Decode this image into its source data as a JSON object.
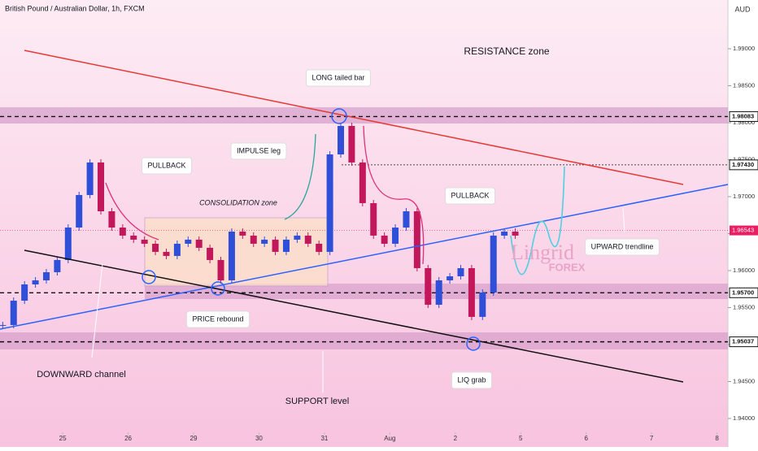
{
  "chart_data": {
    "type": "candlestick",
    "title": "British Pound / Australian Dollar, 1h, FXCM",
    "currency": "AUD",
    "up_color": "#2f4fd8",
    "down_color": "#c2185b",
    "x": [
      -22,
      -18,
      -14,
      -10,
      -6,
      -2,
      2,
      6,
      10,
      14,
      18,
      22,
      26,
      30,
      34,
      38,
      42,
      46,
      50,
      54,
      58,
      62,
      66,
      70,
      74,
      78,
      82,
      86,
      90,
      94,
      98,
      102,
      106,
      110,
      114,
      118,
      122,
      126,
      130,
      134,
      138,
      142,
      146,
      150,
      154,
      158,
      162,
      166
    ],
    "close": [
      1.95264,
      1.95593,
      1.95813,
      1.95868,
      1.95978,
      1.96143,
      1.96582,
      1.97022,
      1.97462,
      1.96802,
      1.96582,
      1.96473,
      1.96418,
      1.96363,
      1.96253,
      1.96198,
      1.96363,
      1.96418,
      1.96308,
      1.96143,
      1.95868,
      1.96527,
      1.96473,
      1.96363,
      1.96418,
      1.96253,
      1.96418,
      1.96473,
      1.96363,
      1.96253,
      1.97571,
      1.97956,
      1.97462,
      1.96912,
      1.96473,
      1.96363,
      1.96582,
      1.96802,
      1.96033,
      1.95538,
      1.95868,
      1.95923,
      1.96033,
      1.95374,
      1.95703,
      1.96473,
      1.96527,
      1.96473
    ],
    "xlim": [
      -23,
      244
    ],
    "xticks": [
      {
        "value": 0,
        "label": "25"
      },
      {
        "value": 24,
        "label": "26"
      },
      {
        "value": 48,
        "label": "29"
      },
      {
        "value": 72,
        "label": "30"
      },
      {
        "value": 96,
        "label": "31"
      },
      {
        "value": 120,
        "label": "Aug"
      },
      {
        "value": 144,
        "label": "2"
      },
      {
        "value": 168,
        "label": "5"
      },
      {
        "value": 192,
        "label": "6"
      },
      {
        "value": 216,
        "label": "7"
      },
      {
        "value": 240,
        "label": "8"
      }
    ],
    "ylim": [
      1.93945,
      1.99659
    ],
    "yticks": [
      {
        "value": 1.94,
        "label": "1.94000"
      },
      {
        "value": 1.945,
        "label": "1.94500"
      },
      {
        "value": 1.95,
        "label": "1.95000"
      },
      {
        "value": 1.955,
        "label": "1.95500"
      },
      {
        "value": 1.96,
        "label": "1.96000"
      },
      {
        "value": 1.965,
        "label": "1.96500"
      },
      {
        "value": 1.97,
        "label": "1.97000"
      },
      {
        "value": 1.975,
        "label": "1.97500"
      },
      {
        "value": 1.98,
        "label": "1.98000"
      },
      {
        "value": 1.985,
        "label": "1.98500"
      },
      {
        "value": 1.99,
        "label": "1.99000"
      }
    ],
    "levels": [
      {
        "value": 1.98083,
        "label": "1.98083"
      },
      {
        "value": 1.9743,
        "label": "1.97430"
      },
      {
        "value": 1.957,
        "label": "1.95700"
      },
      {
        "value": 1.95037,
        "label": "1.95037"
      }
    ],
    "last_price": {
      "value": 1.96543,
      "label": "1.96543"
    },
    "annotations": [
      "RESISTANCE zone",
      "LONG tailed bar",
      "PULLBACK",
      "IMPULSE leg",
      "CONSOLIDATION zone",
      "PULLBACK",
      "UPWARD trendline",
      "DOWNWARD channel",
      "PRICE rebound",
      "SUPPORT level",
      "LIQ grab"
    ],
    "watermark": [
      "Lingrid",
      "FOREX"
    ]
  }
}
